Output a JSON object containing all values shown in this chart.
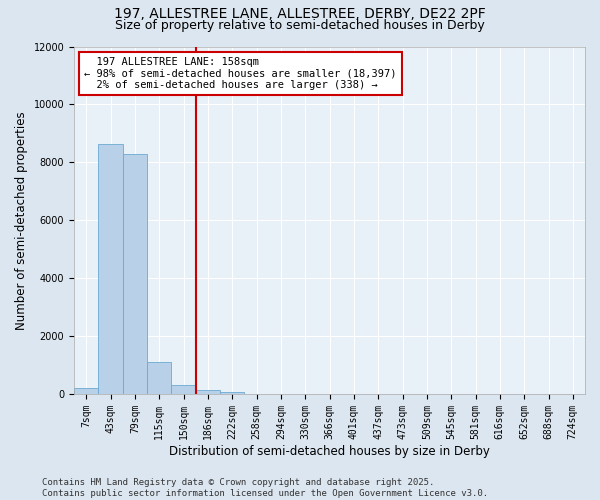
{
  "title_line1": "197, ALLESTREE LANE, ALLESTREE, DERBY, DE22 2PF",
  "title_line2": "Size of property relative to semi-detached houses in Derby",
  "xlabel": "Distribution of semi-detached houses by size in Derby",
  "ylabel": "Number of semi-detached properties",
  "categories": [
    "7sqm",
    "43sqm",
    "79sqm",
    "115sqm",
    "150sqm",
    "186sqm",
    "222sqm",
    "258sqm",
    "294sqm",
    "330sqm",
    "366sqm",
    "401sqm",
    "437sqm",
    "473sqm",
    "509sqm",
    "545sqm",
    "581sqm",
    "616sqm",
    "652sqm",
    "688sqm",
    "724sqm"
  ],
  "values": [
    200,
    8650,
    8300,
    1100,
    300,
    130,
    60,
    0,
    0,
    0,
    0,
    0,
    0,
    0,
    0,
    0,
    0,
    0,
    0,
    0,
    0
  ],
  "bar_color": "#b8d0e8",
  "bar_edge_color": "#6aaad4",
  "red_line_x": 4.5,
  "red_line_label": "197 ALLESTREE LANE: 158sqm",
  "pct_smaller": 98,
  "count_smaller": 18397,
  "pct_larger": 2,
  "count_larger": 338,
  "annotation_box_color": "#cc0000",
  "ylim": [
    0,
    12000
  ],
  "yticks": [
    0,
    2000,
    4000,
    6000,
    8000,
    10000,
    12000
  ],
  "footer_line1": "Contains HM Land Registry data © Crown copyright and database right 2025.",
  "footer_line2": "Contains public sector information licensed under the Open Government Licence v3.0.",
  "bg_color": "#dce6f0",
  "plot_bg_color": "#e8f0f8",
  "grid_color": "#ffffff",
  "title_fontsize": 10,
  "subtitle_fontsize": 9,
  "axis_label_fontsize": 8.5,
  "tick_fontsize": 7,
  "footer_fontsize": 6.5,
  "annotation_fontsize": 7.5
}
